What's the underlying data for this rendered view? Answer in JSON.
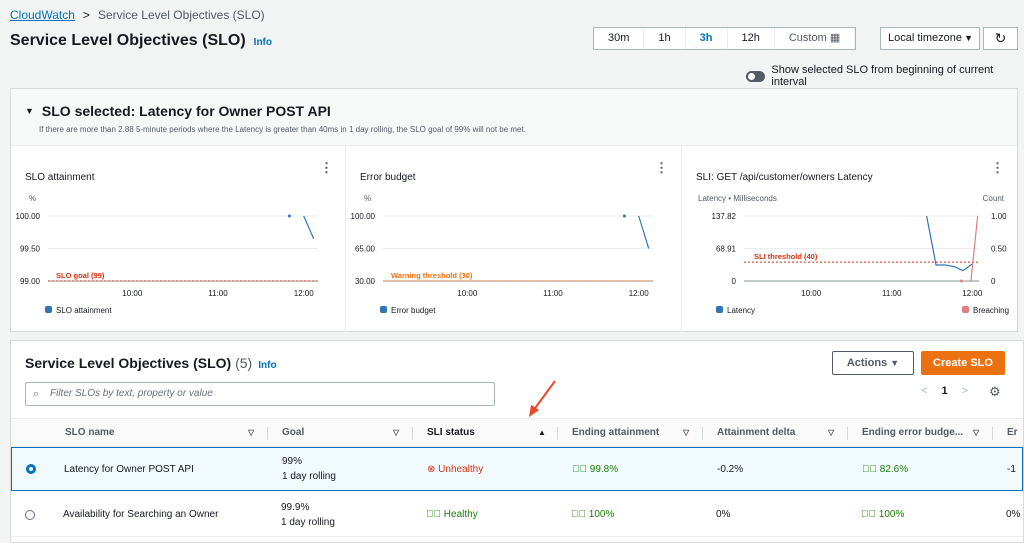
{
  "breadcrumb": {
    "root": "CloudWatch",
    "separator": ">",
    "current": "Service Level Objectives (SLO)"
  },
  "header": {
    "title": "Service Level Objectives (SLO)",
    "info": "Info"
  },
  "time_range": {
    "options": [
      "30m",
      "1h",
      "3h",
      "12h",
      "Custom"
    ],
    "selected": "3h",
    "timezone": "Local timezone"
  },
  "toggle": {
    "label": "Show selected SLO from beginning of current interval",
    "on": false
  },
  "selected_panel": {
    "title": "SLO selected: Latency for Owner POST API",
    "description": "If there are more than 2.88 5-minute periods where the Latency is greater than 40ms in 1 day rolling, the SLO goal of 99% will not be met."
  },
  "chart_data": [
    {
      "type": "line",
      "title": "SLO attainment",
      "ylabel": "%",
      "yticks": [
        "100.00",
        "99.50",
        "99.00"
      ],
      "ylim": [
        99,
        100
      ],
      "xticks": [
        "10:00",
        "11:00",
        "12:00"
      ],
      "xdomain_min": [
        541,
        730
      ],
      "series": [
        {
          "name": "SLO attainment",
          "color": "#3274b8",
          "points": [
            [
              710,
              100
            ]
          ],
          "line": [
            [
              720,
              100
            ],
            [
              727,
              99.65
            ]
          ]
        }
      ],
      "threshold": {
        "label": "SLO goal (99)",
        "value": 99,
        "color": "#d13212"
      }
    },
    {
      "type": "line",
      "title": "Error budget",
      "ylabel": "%",
      "yticks": [
        "100.00",
        "65.00",
        "30.00"
      ],
      "ylim": [
        30,
        100
      ],
      "xticks": [
        "10:00",
        "11:00",
        "12:00"
      ],
      "xdomain_min": [
        541,
        730
      ],
      "series": [
        {
          "name": "Error budget",
          "color": "#3274b8",
          "points": [
            [
              710,
              100
            ]
          ],
          "line": [
            [
              720,
              100
            ],
            [
              727,
              65
            ]
          ]
        }
      ],
      "threshold": {
        "label": "Warning threshold (30)",
        "value": 30,
        "color": "#ec7211"
      }
    },
    {
      "type": "line",
      "title": "SLI: GET /api/customer/owners Latency",
      "ylabel": "Latency • Milliseconds",
      "ylabel_right": "Count",
      "yticks": [
        "137.82",
        "68.91",
        "0"
      ],
      "yticks_right": [
        "1.00",
        "0.50",
        "0"
      ],
      "ylim": [
        0,
        137.82
      ],
      "xticks": [
        "10:00",
        "11:00",
        "12:00"
      ],
      "xdomain_min": [
        550,
        725
      ],
      "series": [
        {
          "name": "Latency",
          "color": "#3274b8",
          "line": [
            [
              686,
              137.82
            ],
            [
              693,
              34
            ],
            [
              700,
              34
            ],
            [
              707,
              30
            ],
            [
              713,
              22
            ],
            [
              720,
              36
            ]
          ]
        },
        {
          "name": "Breaching",
          "color": "#e07f7f",
          "points": [
            [
              712,
              0
            ]
          ],
          "line": [
            [
              719,
              0
            ],
            [
              724,
              137.82
            ]
          ]
        }
      ],
      "threshold": {
        "label": "SLI threshold (40)",
        "value": 40,
        "color": "#d13212"
      }
    }
  ],
  "table": {
    "title": "Service Level Objectives (SLO)",
    "count": "(5)",
    "info": "Info",
    "actions_label": "Actions",
    "create_label": "Create SLO",
    "search_placeholder": "Filter SLOs by text, property or value",
    "page": "1",
    "columns": [
      "SLO name",
      "Goal",
      "SLI status",
      "Ending attainment",
      "Attainment delta",
      "Ending error budge...",
      "Er"
    ],
    "rows": [
      {
        "selected": true,
        "name": "Latency for Owner POST API",
        "goal": "99%",
        "goal_period": "1 day rolling",
        "status": "Unhealthy",
        "ending_attainment": "99.8%",
        "attainment_delta": "-0.2%",
        "ending_error_budget": "82.6%",
        "next": "-1"
      },
      {
        "selected": false,
        "name": "Availability for Searching an Owner",
        "goal": "99.9%",
        "goal_period": "1 day rolling",
        "status": "Healthy",
        "ending_attainment": "100%",
        "attainment_delta": "0%",
        "ending_error_budget": "100%",
        "next": "0%"
      }
    ]
  }
}
